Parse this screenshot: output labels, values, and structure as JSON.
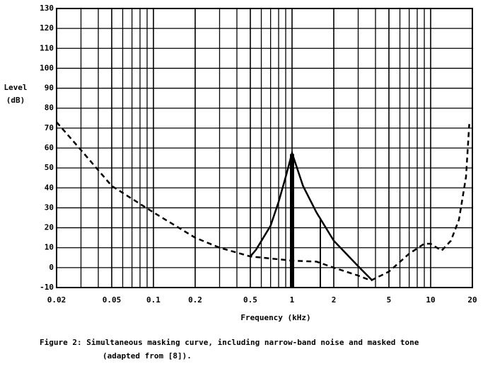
{
  "chart_data": {
    "type": "line",
    "ylabel": [
      "Level",
      "(dB)"
    ],
    "xlabel": "Frequency (kHz)",
    "caption": [
      "Figure 2:  Simultaneous masking curve, including narrow-band noise and masked tone",
      "(adapted from [8])."
    ],
    "xscale": "log",
    "xlim": [
      0.02,
      20
    ],
    "ylim": [
      -10,
      130
    ],
    "xticks": [
      0.02,
      0.05,
      0.1,
      0.2,
      0.5,
      1,
      2,
      5,
      10,
      20
    ],
    "xgrid_minor": [
      0.03,
      0.04,
      0.06,
      0.07,
      0.08,
      0.09,
      0.3,
      0.4,
      0.6,
      0.7,
      0.8,
      0.9,
      3,
      4,
      6,
      7,
      8,
      9
    ],
    "yticks": [
      -10,
      0,
      10,
      20,
      30,
      40,
      50,
      60,
      70,
      80,
      90,
      100,
      110,
      120,
      130
    ],
    "grid": true,
    "series": [
      {
        "style": "dashed",
        "color": "#000000",
        "x": [
          0.02,
          0.03,
          0.05,
          0.1,
          0.2,
          0.3,
          0.5,
          1,
          1.5,
          2,
          3,
          3.7,
          5,
          7,
          9,
          10,
          12,
          14,
          16,
          18,
          19
        ],
        "values": [
          73,
          59,
          41,
          27.7,
          15,
          10,
          5.6,
          3.5,
          3,
          0,
          -4,
          -6.5,
          -2,
          7,
          12,
          12,
          8.5,
          13.5,
          24,
          45.5,
          72
        ]
      },
      {
        "style": "solid",
        "color": "#000000",
        "x": [
          0.5,
          0.55,
          0.7,
          0.8,
          0.9,
          1,
          1.2,
          1.5,
          2,
          3,
          3.8
        ],
        "values": [
          5.6,
          9,
          21,
          33,
          45.5,
          57.5,
          41,
          27.7,
          13.5,
          0.7,
          -6.5
        ]
      },
      {
        "style": "bar",
        "color": "#000000",
        "x": [
          1,
          1.6
        ],
        "widths": [
          6,
          2
        ],
        "values": [
          57,
          25
        ]
      }
    ]
  }
}
